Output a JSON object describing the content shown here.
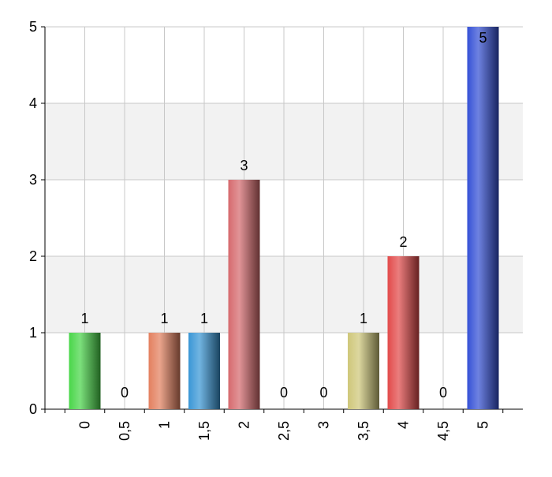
{
  "chart_data": {
    "type": "bar",
    "title": "",
    "xlabel": "",
    "ylabel": "",
    "ylim": [
      0,
      5
    ],
    "yticks": [
      "0",
      "1",
      "2",
      "3",
      "4",
      "5"
    ],
    "grid": true,
    "legend": "none",
    "categories": [
      "0",
      "0,5",
      "1",
      "1,5",
      "2",
      "2,5",
      "3",
      "3,5",
      "4",
      "4,5",
      "5"
    ],
    "values": [
      1,
      0,
      1,
      1,
      3,
      0,
      0,
      1,
      2,
      0,
      5
    ],
    "data_labels": [
      "1",
      "0",
      "1",
      "1",
      "3",
      "0",
      "0",
      "1",
      "2",
      "0",
      "5"
    ],
    "colors": [
      "#49d649",
      "#bdbdbd",
      "#e3805f",
      "#3a97d6",
      "#d66a6e",
      "#bdbdbd",
      "#bdbdbd",
      "#cfc77a",
      "#e24a4a",
      "#bdbdbd",
      "#3551d6"
    ]
  }
}
